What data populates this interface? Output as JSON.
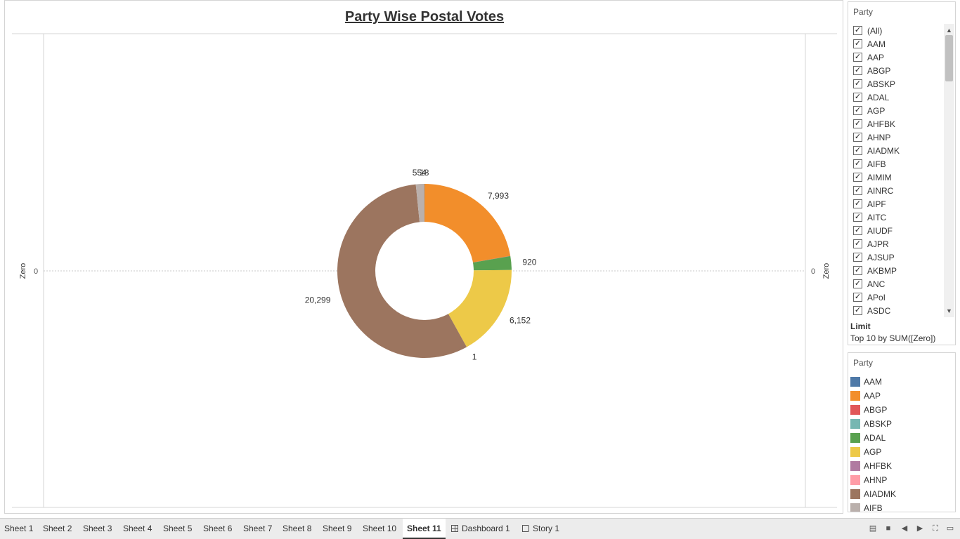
{
  "title": "Party Wise Postal Votes",
  "axes": {
    "left_label": "Zero",
    "right_label": "Zero",
    "left_tick": "0",
    "right_tick": "0"
  },
  "chart_data": {
    "type": "pie",
    "style": "donut",
    "title": "Party Wise Postal Votes",
    "slices": [
      {
        "label": "AAP",
        "value": 7993,
        "value_label": "7,993",
        "color": "#f28e2b"
      },
      {
        "label": "ABGP",
        "value": 18,
        "value_label": "",
        "color": "#e15759"
      },
      {
        "label": "ADAL",
        "value": 920,
        "value_label": "920",
        "color": "#59a14f"
      },
      {
        "label": "AGP",
        "value": 6152,
        "value_label": "6,152",
        "color": "#edc948"
      },
      {
        "label": "AHFBK",
        "value": 1,
        "value_label": "1",
        "color": "#b07aa1"
      },
      {
        "label": "AIADMK",
        "value": 20299,
        "value_label": "20,299",
        "color": "#9c755f"
      },
      {
        "label": "AIFB",
        "value": 554,
        "value_label": "554",
        "color": "#bab0ac"
      },
      {
        "label": "AAM",
        "value": 18,
        "value_label": "18",
        "color": "#4e79a7"
      }
    ]
  },
  "filter": {
    "title": "Party",
    "check_mark": "✓",
    "items": [
      "(All)",
      "AAM",
      "AAP",
      "ABGP",
      "ABSKP",
      "ADAL",
      "AGP",
      "AHFBK",
      "AHNP",
      "AIADMK",
      "AIFB",
      "AIMIM",
      "AINRC",
      "AIPF",
      "AITC",
      "AIUDF",
      "AJPR",
      "AJSUP",
      "AKBMP",
      "ANC",
      "APoI",
      "ASDC"
    ],
    "limit_title": "Limit",
    "limit_text": "Top 10 by SUM([Zero])",
    "scroll_up": "▲",
    "scroll_down": "▼"
  },
  "legend": {
    "title": "Party",
    "items": [
      {
        "label": "AAM",
        "color": "#4e79a7"
      },
      {
        "label": "AAP",
        "color": "#f28e2b"
      },
      {
        "label": "ABGP",
        "color": "#e15759"
      },
      {
        "label": "ABSKP",
        "color": "#76b7b2"
      },
      {
        "label": "ADAL",
        "color": "#59a14f"
      },
      {
        "label": "AGP",
        "color": "#edc948"
      },
      {
        "label": "AHFBK",
        "color": "#b07aa1"
      },
      {
        "label": "AHNP",
        "color": "#ff9da7"
      },
      {
        "label": "AIADMK",
        "color": "#9c755f"
      },
      {
        "label": "AIFB",
        "color": "#bab0ac"
      }
    ]
  },
  "tabs": [
    {
      "label": "Sheet 1",
      "icon": ""
    },
    {
      "label": "Sheet 2",
      "icon": ""
    },
    {
      "label": "Sheet 3",
      "icon": ""
    },
    {
      "label": "Sheet 4",
      "icon": ""
    },
    {
      "label": "Sheet 5",
      "icon": ""
    },
    {
      "label": "Sheet 6",
      "icon": ""
    },
    {
      "label": "Sheet 7",
      "icon": ""
    },
    {
      "label": "Sheet 8",
      "icon": ""
    },
    {
      "label": "Sheet 9",
      "icon": ""
    },
    {
      "label": "Sheet 10",
      "icon": ""
    },
    {
      "label": "Sheet 11",
      "icon": "",
      "active": true
    },
    {
      "label": "Dashboard 1",
      "icon": "dashboard-icon"
    },
    {
      "label": "Story 1",
      "icon": "story-icon"
    }
  ],
  "nav_controls": [
    {
      "name": "filmstrip-view-icon",
      "glyph": "▤"
    },
    {
      "name": "tab-view-icon",
      "glyph": "■"
    },
    {
      "name": "previous-sheet-icon",
      "glyph": "◀"
    },
    {
      "name": "next-sheet-icon",
      "glyph": "▶"
    },
    {
      "name": "fullscreen-icon",
      "glyph": "⛶"
    },
    {
      "name": "presentation-mode-icon",
      "glyph": "▭"
    }
  ]
}
